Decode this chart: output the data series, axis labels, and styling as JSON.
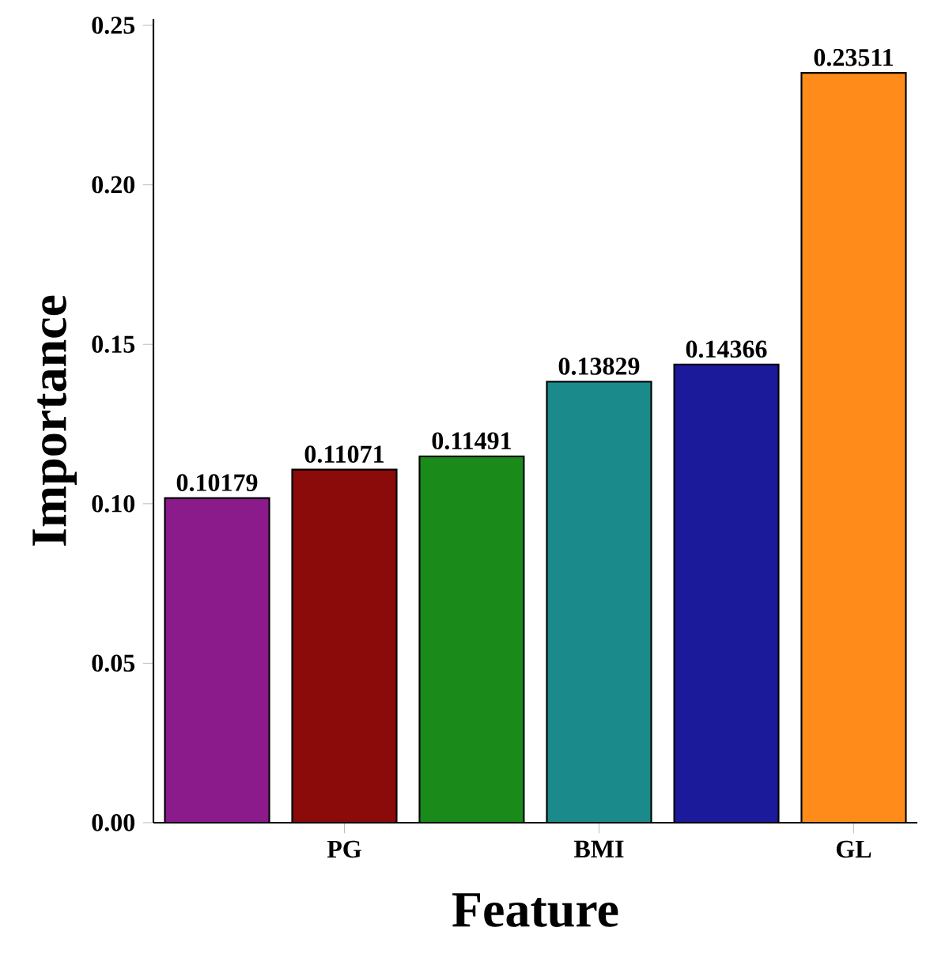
{
  "chart_data": {
    "type": "bar",
    "xlabel": "Feature",
    "ylabel": "Importance",
    "categories": [
      null,
      "PG",
      null,
      "BMI",
      null,
      "GL"
    ],
    "values": [
      0.10179,
      0.11071,
      0.11491,
      0.13829,
      0.14366,
      0.23511
    ],
    "colors": [
      "#8b1a8b",
      "#8b0a0a",
      "#1a8a1a",
      "#1a8a8a",
      "#1a1a9a",
      "#ff8c1a"
    ],
    "ylim": [
      0,
      0.252
    ],
    "yticks": [
      {
        "value": 0,
        "label": "0.00"
      },
      0.05,
      {
        "value": 0.1,
        "label": "0.10"
      },
      0.15,
      {
        "value": 0.2,
        "label": "0.20"
      },
      0.25
    ],
    "data_labels": true
  }
}
